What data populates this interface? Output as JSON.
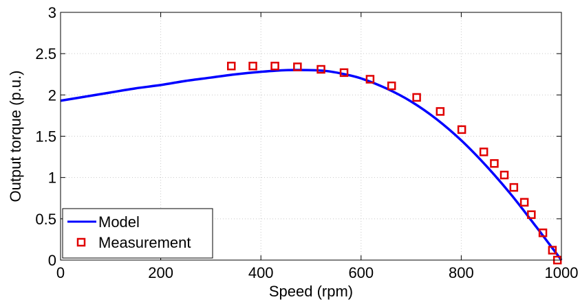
{
  "chart_data": {
    "type": "line",
    "xlabel": "Speed (rpm)",
    "ylabel": "Output torque (p.u.)",
    "xlim": [
      0,
      1000
    ],
    "ylim": [
      0,
      3
    ],
    "xticks": [
      "0",
      "200",
      "400",
      "600",
      "800",
      "1000"
    ],
    "yticks": [
      "0",
      "0.5",
      "1",
      "1.5",
      "2",
      "2.5",
      "3"
    ],
    "grid": true,
    "legend_position": "bottom-left",
    "series": [
      {
        "name": "Model",
        "style": "line",
        "color": "#0000ff",
        "x": [
          0,
          50,
          100,
          150,
          200,
          250,
          300,
          350,
          400,
          450,
          500,
          530,
          560,
          600,
          650,
          700,
          750,
          800,
          850,
          900,
          950,
          975,
          1000
        ],
        "y": [
          1.93,
          1.98,
          2.03,
          2.08,
          2.12,
          2.17,
          2.21,
          2.25,
          2.28,
          2.3,
          2.3,
          2.29,
          2.26,
          2.2,
          2.08,
          1.92,
          1.71,
          1.45,
          1.14,
          0.79,
          0.4,
          0.2,
          0.0
        ]
      },
      {
        "name": "Measurement",
        "style": "marker-square",
        "color": "#e00000",
        "x": [
          341,
          384,
          428,
          473,
          520,
          566,
          618,
          661,
          711,
          758,
          801,
          845,
          866,
          886,
          905,
          926,
          940,
          963,
          982,
          992
        ],
        "y": [
          2.35,
          2.35,
          2.35,
          2.34,
          2.31,
          2.27,
          2.19,
          2.11,
          1.97,
          1.8,
          1.58,
          1.31,
          1.17,
          1.03,
          0.88,
          0.7,
          0.55,
          0.33,
          0.12,
          0.0
        ]
      }
    ]
  }
}
